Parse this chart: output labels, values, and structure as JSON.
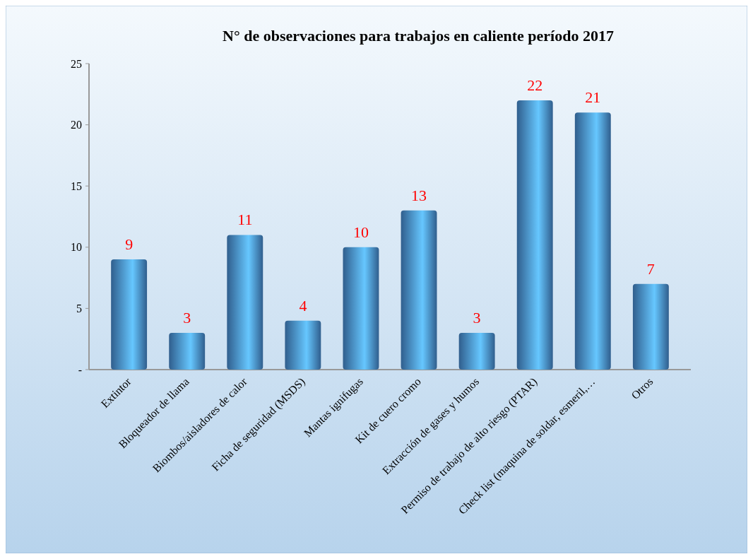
{
  "chart_data": {
    "type": "bar",
    "title": "N° de observaciones para trabajos en caliente período 2017",
    "categories": [
      "Extintor",
      "Bloqueador de llama",
      "Biombos/aisladores de calor",
      "Ficha de seguridad (MSDS)",
      "Mantas ignifugas",
      "Kit de cuero cromo",
      "Extracción de gases y humos",
      "Permiso de trabajo de alto riesgo (PTAR)",
      "Check list (maquina de soldar, esmeril,…",
      "Otros"
    ],
    "values": [
      9,
      3,
      11,
      4,
      10,
      13,
      3,
      22,
      21,
      7
    ],
    "color": "#4a90d9",
    "ylim": [
      0,
      25
    ],
    "yticks": [
      {
        "value": 0,
        "label": "-"
      },
      5,
      10,
      15,
      20,
      25
    ],
    "data_labels": true
  }
}
